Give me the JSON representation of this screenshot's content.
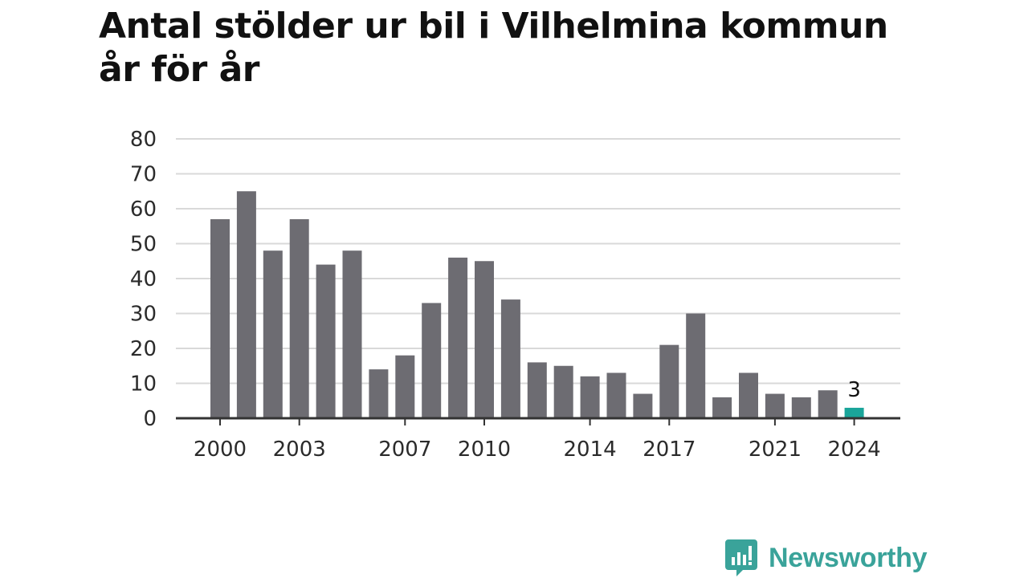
{
  "chart_data": {
    "type": "bar",
    "title": "Antal stölder ur bil i Vilhelmina kommun år för år",
    "xlabel": "",
    "ylabel": "",
    "ylim": [
      0,
      80
    ],
    "yticks": [
      0,
      10,
      20,
      30,
      40,
      50,
      60,
      70,
      80
    ],
    "xtick_labels": [
      "2000",
      "2003",
      "2007",
      "2010",
      "2014",
      "2017",
      "2021",
      "2024"
    ],
    "grid": true,
    "categories": [
      2000,
      2001,
      2002,
      2003,
      2004,
      2005,
      2006,
      2007,
      2008,
      2009,
      2010,
      2011,
      2012,
      2013,
      2014,
      2015,
      2016,
      2017,
      2018,
      2019,
      2020,
      2021,
      2022,
      2023,
      2024
    ],
    "values": [
      57,
      65,
      48,
      57,
      44,
      48,
      14,
      18,
      33,
      46,
      45,
      34,
      16,
      15,
      12,
      13,
      7,
      21,
      30,
      6,
      13,
      7,
      6,
      8,
      3
    ],
    "highlight": {
      "category": 2024,
      "label": "3",
      "color": "#1aa59a"
    },
    "bar_color": "#6d6c72",
    "grid_color": "#d9d9d9",
    "axis_color": "#333333"
  },
  "brand": {
    "name": "Newsworthy",
    "color": "#3aa39a"
  }
}
